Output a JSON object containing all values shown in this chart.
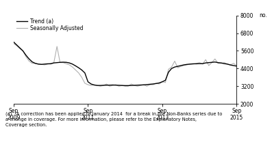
{
  "ylabel_right": "no.",
  "ylim": [
    2000,
    8000
  ],
  "yticks": [
    2000,
    3200,
    4400,
    5600,
    6800,
    8000
  ],
  "footnote": "(a)   A correction has been applied to January 2014  for a break in the Non-Banks series due to\na change in coverage. For more information, please refer to the Explanatory Notes,\nCoverage section.",
  "legend_entries": [
    "Trend (a)",
    "Seasonally Adjusted"
  ],
  "legend_colors": [
    "#000000",
    "#b0b0b0"
  ],
  "xtick_labels": [
    "Sep\n2009",
    "Sep\n2011",
    "Sep\n2013",
    "Sep\n2015"
  ],
  "xtick_positions": [
    0,
    24,
    48,
    72
  ],
  "xlim": [
    0,
    72
  ],
  "trend_x": [
    0,
    1,
    2,
    3,
    4,
    5,
    6,
    7,
    8,
    9,
    10,
    11,
    12,
    13,
    14,
    15,
    16,
    17,
    18,
    19,
    20,
    21,
    22,
    23,
    24,
    25,
    26,
    27,
    28,
    29,
    30,
    31,
    32,
    33,
    34,
    35,
    36,
    37,
    38,
    39,
    40,
    41,
    42,
    43,
    44,
    45,
    46,
    47,
    48,
    49,
    50,
    51,
    52,
    53,
    54,
    55,
    56,
    57,
    58,
    59,
    60,
    61,
    62,
    63,
    64,
    65,
    66,
    67,
    68,
    69,
    70,
    71,
    72
  ],
  "trend_y": [
    6200,
    6000,
    5800,
    5600,
    5300,
    5050,
    4850,
    4750,
    4700,
    4680,
    4700,
    4720,
    4720,
    4780,
    4800,
    4820,
    4830,
    4820,
    4780,
    4700,
    4580,
    4450,
    4300,
    4100,
    3500,
    3350,
    3280,
    3250,
    3250,
    3260,
    3270,
    3270,
    3280,
    3270,
    3260,
    3250,
    3240,
    3240,
    3250,
    3260,
    3270,
    3280,
    3290,
    3310,
    3330,
    3350,
    3380,
    3420,
    3500,
    3600,
    4150,
    4400,
    4500,
    4550,
    4600,
    4650,
    4680,
    4700,
    4720,
    4720,
    4730,
    4730,
    4780,
    4800,
    4820,
    4840,
    4800,
    4780,
    4730,
    4700,
    4640,
    4600,
    4560
  ],
  "sa_x": [
    0,
    1,
    2,
    3,
    4,
    5,
    6,
    7,
    8,
    9,
    10,
    11,
    12,
    13,
    14,
    15,
    16,
    17,
    18,
    19,
    20,
    21,
    22,
    23,
    24,
    25,
    26,
    27,
    28,
    29,
    30,
    31,
    32,
    33,
    34,
    35,
    36,
    37,
    38,
    39,
    40,
    41,
    42,
    43,
    44,
    45,
    46,
    47,
    48,
    49,
    50,
    51,
    52,
    53,
    54,
    55,
    56,
    57,
    58,
    59,
    60,
    61,
    62,
    63,
    64,
    65,
    66,
    67,
    68,
    69,
    70,
    71,
    72
  ],
  "sa_y": [
    6100,
    5950,
    5750,
    5600,
    5200,
    4900,
    4750,
    4750,
    4700,
    4680,
    4650,
    4700,
    4750,
    4800,
    5900,
    4800,
    4800,
    4720,
    4650,
    4500,
    4300,
    4100,
    3800,
    3400,
    3300,
    3250,
    3300,
    3250,
    3200,
    3250,
    3350,
    3200,
    3250,
    3300,
    3200,
    3250,
    3200,
    3200,
    3350,
    3250,
    3200,
    3250,
    3300,
    3200,
    3300,
    3300,
    3400,
    3350,
    3500,
    3450,
    4350,
    4500,
    4900,
    4450,
    4550,
    4600,
    4650,
    4700,
    4700,
    4750,
    4800,
    4700,
    5000,
    4600,
    4800,
    5050,
    4750,
    4750,
    4800,
    4700,
    4650,
    4750,
    4600
  ]
}
